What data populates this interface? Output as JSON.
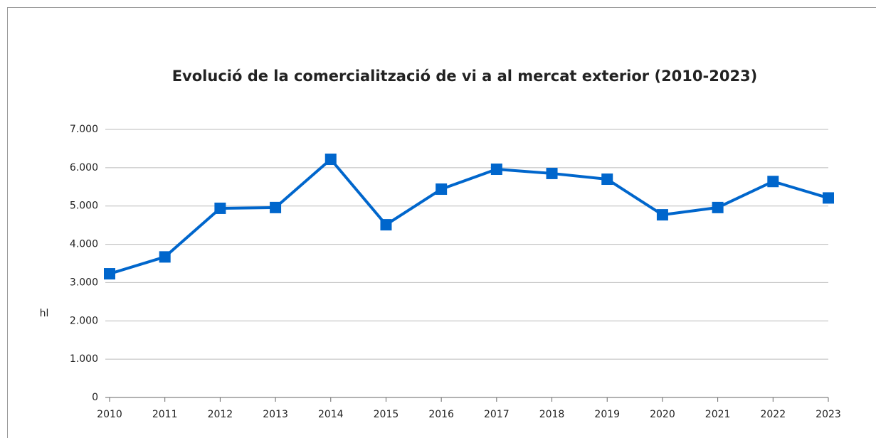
{
  "chart_data": {
    "type": "line",
    "title": "Evolució de la comercialització de vi a al mercat exterior (2010-2023)",
    "y_label": "hl",
    "categories": [
      "2010",
      "2011",
      "2012",
      "2013",
      "2014",
      "2015",
      "2016",
      "2017",
      "2018",
      "2019",
      "2020",
      "2021",
      "2022",
      "2023"
    ],
    "series": [
      {
        "name": "hl",
        "color": "#0066cc",
        "values": [
          3230,
          3670,
          4940,
          4960,
          6220,
          4510,
          5440,
          5960,
          5850,
          5700,
          4770,
          4960,
          5640,
          5210
        ]
      }
    ],
    "ylim": [
      0,
      7000
    ],
    "yticks": [
      0,
      {
        "value": 1000,
        "label": "1.000"
      },
      {
        "value": 2000,
        "label": "2.000"
      },
      {
        "value": 3000,
        "label": "3.000"
      },
      {
        "value": 4000,
        "label": "4.000"
      },
      {
        "value": 5000,
        "label": "5.000"
      },
      {
        "value": 6000,
        "label": "6.000"
      },
      {
        "value": 7000,
        "label": "7.000"
      }
    ],
    "grid": true
  }
}
